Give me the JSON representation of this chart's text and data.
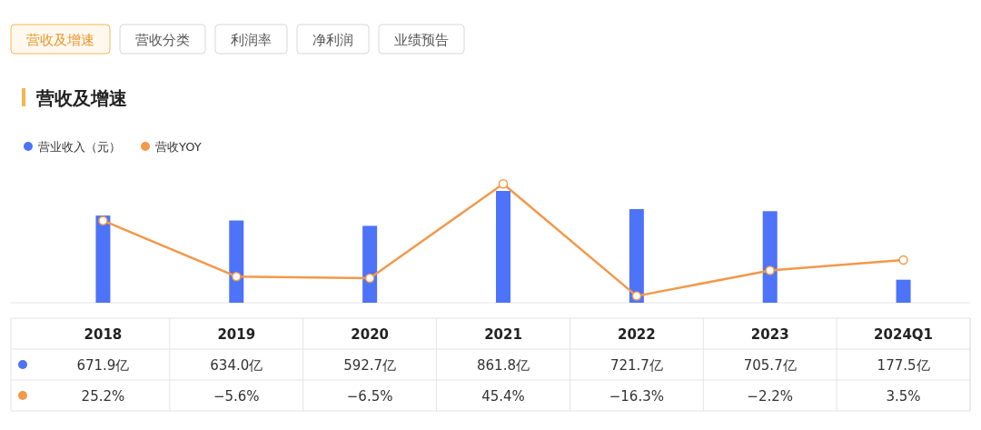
{
  "chart_data": {
    "type": "bar",
    "title": "营收及增速",
    "annotations": [
      "营收及增速",
      "营收分类",
      "利润率",
      "净利润",
      "业绩预告"
    ],
    "categories": [
      "2018",
      "2019",
      "2020",
      "2021",
      "2022",
      "2023",
      "2024Q1"
    ],
    "series": [
      {
        "name": "营业收入（元）",
        "color": "#4d73f8",
        "values": [
          671.9,
          634.0,
          592.7,
          861.8,
          721.7,
          705.7,
          177.5
        ],
        "value_labels": [
          "671.9亿",
          "634.0亿",
          "592.7亿",
          "861.8亿",
          "721.7亿",
          "705.7亿",
          "177.5亿"
        ]
      },
      {
        "name": "营收YOY",
        "type": "line",
        "axis": "y2",
        "color": "#f2994a",
        "values": [
          25.2,
          -5.6,
          -6.5,
          45.4,
          -16.3,
          -2.2,
          3.5
        ],
        "value_labels": [
          "25.2%",
          "−5.6%",
          "−6.5%",
          "45.4%",
          "−16.3%",
          "−2.2%",
          "3.5%"
        ]
      }
    ],
    "legend": "top left",
    "marker": "circle",
    "tick_labels": "x"
  }
}
